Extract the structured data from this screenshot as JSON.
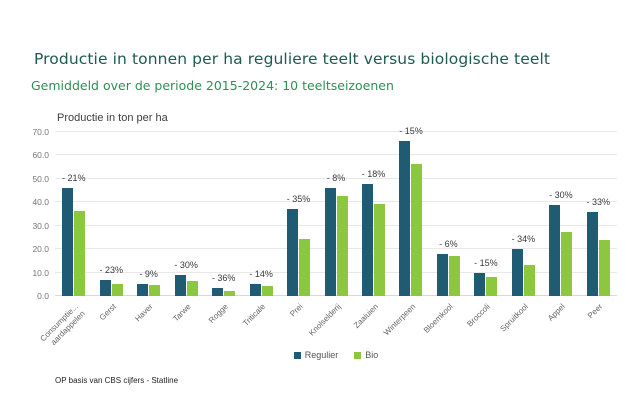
{
  "colors": {
    "title": "#1e5b4e",
    "subtitle": "#2e8f55",
    "regulier": "#1f5b73",
    "bio": "#8dc63f",
    "gridline": "#e8e8e8"
  },
  "chart_data": {
    "type": "bar",
    "title": "Productie in tonnen per ha reguliere teelt versus biologische teelt",
    "subtitle": "Gemiddeld over de periode 2015-2024: 10 teeltseizoenen",
    "axis_title": "Productie in ton per ha",
    "categories": [
      "Consumptie...\naardappelen",
      "Gerst",
      "Haver",
      "Tarwe",
      "Rogge",
      "Triticale",
      "Prei",
      "Knolselderij",
      "Zaaiuien",
      "Winterpeen",
      "Bloemkool",
      "Broccoli",
      "Spruitkool",
      "Appel",
      "Peer"
    ],
    "series": [
      {
        "name": "Regulier",
        "color": "#1f5b73",
        "values": [
          46.2,
          6.9,
          5.1,
          9.0,
          3.6,
          5.0,
          37.2,
          46.2,
          47.9,
          66.3,
          17.9,
          9.8,
          20.1,
          38.9,
          35.9
        ]
      },
      {
        "name": "Bio",
        "color": "#8dc63f",
        "values": [
          36.5,
          5.3,
          4.7,
          6.3,
          2.3,
          4.3,
          24.2,
          42.5,
          39.3,
          56.4,
          16.9,
          8.3,
          13.3,
          27.2,
          23.9
        ]
      }
    ],
    "bar_labels": [
      "- 21%",
      "- 23%",
      "- 9%",
      "- 30%",
      "- 36%",
      "- 14%",
      "- 35%",
      "- 8%",
      "- 18%",
      "- 15%",
      "- 6%",
      "- 15%",
      "- 34%",
      "- 30%",
      "- 33%"
    ],
    "ylim": [
      0,
      70
    ],
    "ytick_step": 10,
    "ytick_labels": [
      "0.0",
      "10.0",
      "20.0",
      "30.0",
      "40.0",
      "50.0",
      "60.0",
      "70.0"
    ],
    "grid": true,
    "legend_position": "bottom"
  },
  "footer": {
    "source": "OP basis van CBS cijfers - Statline"
  }
}
